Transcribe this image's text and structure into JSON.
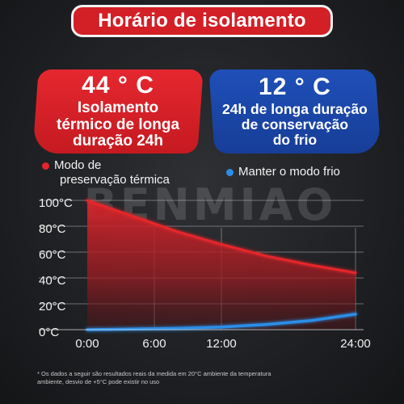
{
  "title": "Horário de isolamento",
  "hot_badge": {
    "temp": "44 ° C",
    "lines": [
      "Isolamento",
      "térmico de longa",
      "duração 24h"
    ]
  },
  "cold_badge": {
    "temp": "12 ° C",
    "lines": [
      "24h de longa duração",
      "de conservação",
      "do frio"
    ]
  },
  "watermark": "BENMIAO",
  "footnote": "* Os dados a seguir são resultados reais da medida em 20°C ambiente da temperatura ambiente, desvio de +5°C pode existir no uso",
  "colors": {
    "hot": "#e5252c",
    "cold": "#2c8ee8",
    "title_bg": "#d31f26",
    "cold_badge_bg": "#1f4fb8"
  },
  "chart_data": {
    "type": "line",
    "x_tick_labels": [
      "0:00",
      "6:00",
      "12:00",
      "24:00"
    ],
    "x_ticks": [
      0,
      6,
      12,
      24
    ],
    "y_tick_labels": [
      "100°C",
      "80°C",
      "60°C",
      "40°C",
      "20°C",
      "0°C"
    ],
    "y_ticks": [
      100,
      80,
      60,
      40,
      20,
      0
    ],
    "xlim": [
      0,
      24
    ],
    "ylim": [
      0,
      100
    ],
    "grid": true,
    "legend": "top",
    "series": [
      {
        "name": "Modo de preservação térmica",
        "color": "#e5252c",
        "fill": true,
        "x": [
          0,
          4,
          8,
          12,
          16,
          20,
          24
        ],
        "y": [
          100,
          88,
          76,
          66,
          57,
          50,
          44
        ]
      },
      {
        "name": "Manter o modo frio",
        "color": "#2c8ee8",
        "fill": false,
        "x": [
          0,
          4,
          8,
          12,
          16,
          20,
          24
        ],
        "y": [
          0,
          0.5,
          1,
          2,
          4,
          7,
          12
        ]
      }
    ]
  }
}
